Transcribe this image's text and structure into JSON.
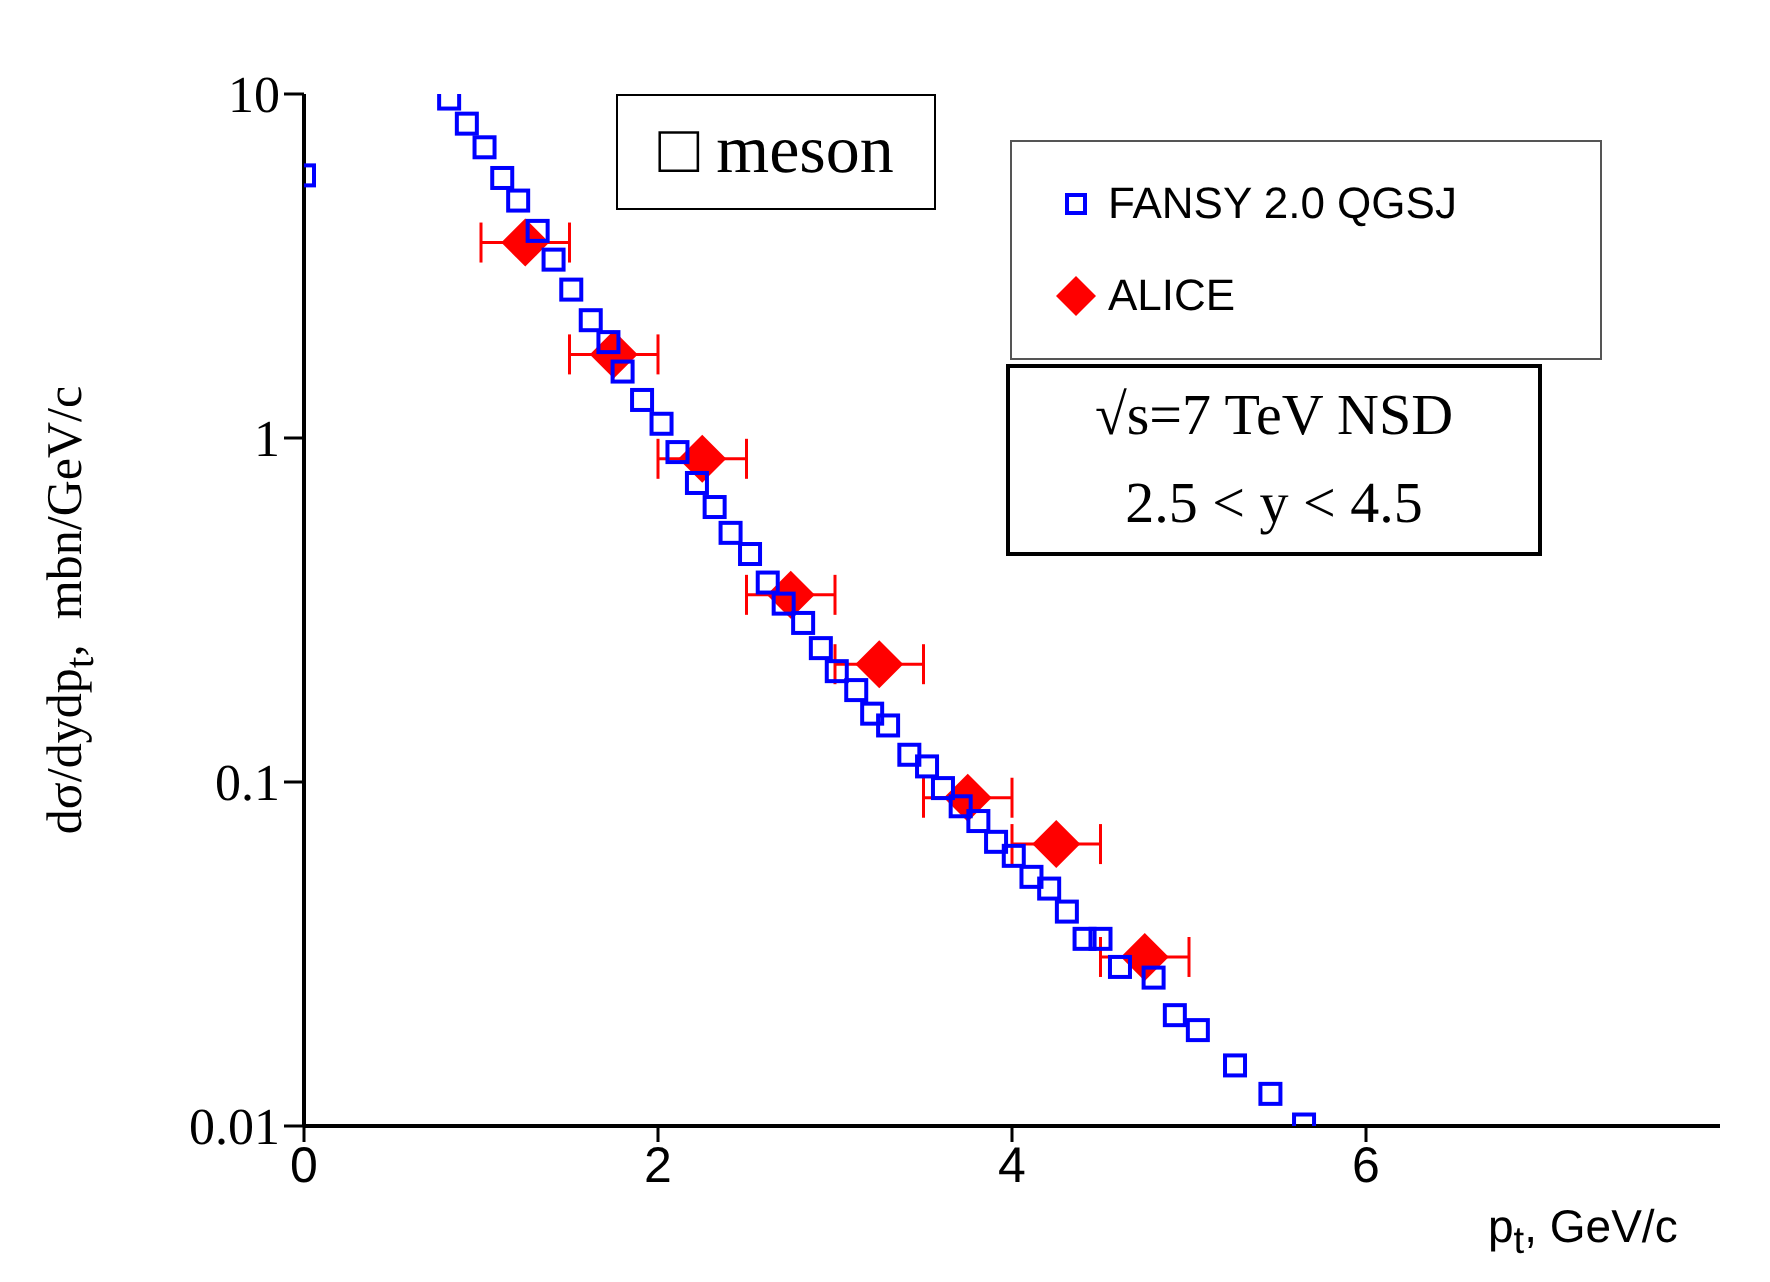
{
  "chart_data": {
    "type": "scatter",
    "xlabel": "p$_{t}$, GeV/c",
    "ylabel": "dσ/dydp$_{t}$,  mbn/GeV/c",
    "log": "y",
    "xlim": [
      0,
      8
    ],
    "xticks": [
      0,
      2,
      4,
      6
    ],
    "ylim": [
      0.01,
      10
    ],
    "yticks": [
      0.01,
      0.1,
      1,
      10
    ],
    "grid": false,
    "legend": "top right",
    "annotations": [
      "□ meson",
      "√s=7 TeV  NSD",
      "2.5 < y < 4.5"
    ],
    "series": [
      {
        "name": "FANSY 2.0 QGSJ",
        "color": "#0000ff",
        "marker": "square",
        "x": [
          0,
          0.82,
          0.92,
          1.02,
          1.12,
          1.21,
          1.32,
          1.41,
          1.51,
          1.62,
          1.72,
          1.8,
          1.91,
          2.02,
          2.11,
          2.22,
          2.32,
          2.41,
          2.52,
          2.62,
          2.71,
          2.82,
          2.92,
          3.01,
          3.12,
          3.21,
          3.3,
          3.42,
          3.52,
          3.61,
          3.71,
          3.81,
          3.91,
          4.01,
          4.11,
          4.21,
          4.31,
          4.41,
          4.5,
          4.61,
          4.8,
          4.92,
          5.05,
          5.26,
          5.46,
          5.65
        ],
        "values": [
          5.8,
          9.7,
          8.2,
          7.0,
          5.7,
          4.9,
          4.0,
          3.3,
          2.7,
          2.2,
          1.9,
          1.56,
          1.29,
          1.1,
          0.91,
          0.74,
          0.63,
          0.53,
          0.46,
          0.38,
          0.33,
          0.29,
          0.245,
          0.21,
          0.185,
          0.158,
          0.146,
          0.12,
          0.111,
          0.096,
          0.085,
          0.077,
          0.067,
          0.061,
          0.053,
          0.049,
          0.042,
          0.035,
          0.035,
          0.029,
          0.027,
          0.021,
          0.019,
          0.015,
          0.0124,
          0.0101
        ]
      },
      {
        "name": "ALICE",
        "color": "#ff0000",
        "marker": "diamond",
        "x": [
          1.25,
          1.75,
          2.25,
          2.75,
          3.25,
          3.75,
          4.25,
          4.75
        ],
        "values": [
          3.7,
          1.75,
          0.87,
          0.35,
          0.22,
          0.09,
          0.066,
          0.031
        ],
        "xerrors": [
          0.25,
          0.25,
          0.25,
          0.25,
          0.25,
          0.25,
          0.25,
          0.25
        ]
      }
    ]
  }
}
